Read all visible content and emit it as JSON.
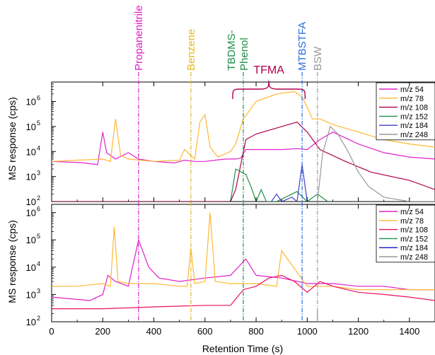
{
  "chart_data": {
    "type": "line",
    "xlabel": "Retention Time (s)",
    "ylabel": "MS response (cps)",
    "xlim": [
      0,
      1500
    ],
    "x_ticks": [
      0,
      200,
      400,
      600,
      800,
      1000,
      1200,
      1400
    ],
    "y_scale": "log",
    "top_panel": {
      "ylim": [
        100,
        6000000
      ],
      "y_ticks": [
        {
          "value": 100,
          "base": "10",
          "exp": "2"
        },
        {
          "value": 1000,
          "base": "10",
          "exp": "3"
        },
        {
          "value": 10000,
          "base": "10",
          "exp": "4"
        },
        {
          "value": 100000,
          "base": "10",
          "exp": "5"
        },
        {
          "value": 1000000,
          "base": "10",
          "exp": "6"
        }
      ],
      "legend": "top-right",
      "series": [
        {
          "name": "m/z 54",
          "color": "#e020c8",
          "x": [
            0,
            120,
            180,
            200,
            215,
            250,
            300,
            340,
            400,
            480,
            520,
            560,
            600,
            640,
            680,
            700,
            720,
            740,
            760,
            800,
            900,
            960,
            1000,
            1050,
            1100,
            1200,
            1300,
            1400,
            1500
          ],
          "y": [
            4000,
            3600,
            3000,
            60000,
            9000,
            5000,
            9000,
            5000,
            4000,
            3500,
            4500,
            4000,
            4000,
            4500,
            5000,
            5000,
            5000,
            5500,
            12000,
            12000,
            12000,
            13000,
            12000,
            30000,
            60000,
            20000,
            9000,
            6000,
            5000
          ]
        },
        {
          "name": "m/z 78",
          "color": "#ffb833",
          "x": [
            0,
            100,
            200,
            230,
            250,
            270,
            300,
            400,
            500,
            520,
            560,
            580,
            600,
            620,
            650,
            700,
            720,
            750,
            800,
            880,
            950,
            980,
            1000,
            1020,
            1050,
            1100,
            1200,
            1300,
            1400,
            1500
          ],
          "y": [
            4000,
            4500,
            5000,
            4000,
            200000,
            7000,
            5000,
            4000,
            4500,
            12000,
            5000,
            150000,
            300000,
            15000,
            6000,
            10000,
            20000,
            200000,
            1000000,
            2000000,
            2500000,
            1500000,
            600000,
            200000,
            200000,
            120000,
            60000,
            30000,
            20000,
            15000
          ]
        },
        {
          "name": "m/z 108",
          "color": "#b0004e",
          "x": [
            0,
            700,
            720,
            760,
            800,
            900,
            960,
            1000,
            1050,
            1150,
            1250,
            1400,
            1500
          ],
          "y": [
            100,
            100,
            300,
            30000,
            50000,
            100000,
            150000,
            60000,
            12000,
            4000,
            1500,
            700,
            300
          ]
        },
        {
          "name": "m/z 152",
          "color": "#1e8f48",
          "x": [
            700,
            720,
            760,
            780,
            800,
            820,
            840,
            880,
            960,
            1000,
            1040,
            1080
          ],
          "y": [
            100,
            2000,
            1200,
            400,
            100,
            300,
            100,
            100,
            250,
            100,
            200,
            100
          ]
        },
        {
          "name": "m/z 184",
          "color": "#4040c0",
          "x": [
            860,
            880,
            900,
            940,
            960,
            980,
            1000
          ],
          "y": [
            100,
            200,
            100,
            150,
            100,
            3000,
            100
          ]
        },
        {
          "name": "m/z 248",
          "color": "#999999",
          "x": [
            1040,
            1060,
            1090,
            1120,
            1160,
            1200,
            1240,
            1300,
            1400,
            1500
          ],
          "y": [
            100,
            8000,
            100000,
            50000,
            10000,
            1500,
            400,
            150,
            100,
            100
          ]
        }
      ]
    },
    "bottom_panel": {
      "ylim": [
        100,
        2000000
      ],
      "y_ticks": [
        {
          "value": 100,
          "base": "10",
          "exp": "2"
        },
        {
          "value": 1000,
          "base": "10",
          "exp": "3"
        },
        {
          "value": 10000,
          "base": "10",
          "exp": "4"
        },
        {
          "value": 100000,
          "base": "10",
          "exp": "5"
        },
        {
          "value": 1000000,
          "base": "10",
          "exp": "6"
        }
      ],
      "legend": "top-right",
      "series": [
        {
          "name": "m/z 54",
          "color": "#e020c8",
          "x": [
            0,
            150,
            200,
            220,
            250,
            300,
            340,
            380,
            420,
            500,
            600,
            700,
            760,
            800,
            900,
            1000,
            1100,
            1200,
            1300,
            1400,
            1500
          ],
          "y": [
            800,
            600,
            1000,
            5000,
            3000,
            2000,
            100000,
            10000,
            4000,
            3000,
            4000,
            5000,
            20000,
            5000,
            4000,
            2500,
            2500,
            2000,
            2000,
            1500,
            1500
          ]
        },
        {
          "name": "m/z 78",
          "color": "#ffb833",
          "x": [
            0,
            100,
            200,
            230,
            245,
            260,
            300,
            400,
            500,
            530,
            545,
            560,
            600,
            620,
            640,
            700,
            800,
            880,
            900,
            1000,
            1100,
            1200,
            1300,
            1400,
            1500
          ],
          "y": [
            2000,
            2000,
            2500,
            2000,
            300000,
            3000,
            2500,
            2500,
            2000,
            2000,
            50000,
            2500,
            3000,
            1000000,
            3000,
            2500,
            2500,
            2000,
            40000,
            2000,
            2000,
            1500,
            1500,
            1500,
            1500
          ]
        },
        {
          "name": "m/z 108",
          "color": "#ea1060",
          "x": [
            0,
            200,
            400,
            600,
            700,
            750,
            800,
            850,
            900,
            950,
            1000,
            1050,
            1100,
            1200,
            1300,
            1400,
            1500
          ],
          "y": [
            300,
            300,
            350,
            400,
            400,
            1500,
            2000,
            4000,
            5000,
            3000,
            1200,
            3000,
            2000,
            1200,
            1000,
            800,
            600
          ]
        },
        {
          "name": "m/z 152",
          "color": "#1e8f48",
          "x": [],
          "y": []
        },
        {
          "name": "m/z 184",
          "color": "#1010c0",
          "x": [],
          "y": []
        },
        {
          "name": "m/z 248",
          "color": "#999999",
          "x": [
            1040,
            1040
          ],
          "y": [
            100,
            250
          ]
        }
      ]
    },
    "annotations": [
      {
        "label": "Propanenitrile",
        "x": 340,
        "color": "#e020c8",
        "lines": [
          "Propanenitrile"
        ]
      },
      {
        "label": "Benzene",
        "x": 545,
        "color": "#e6b820",
        "lines": [
          "Benzene"
        ]
      },
      {
        "label": "TBDMS-Phenol",
        "x": 750,
        "color": "#1e8f48",
        "lines": [
          "TBDMS-",
          "Phenol"
        ]
      },
      {
        "label": "MTBSTFA",
        "x": 980,
        "color": "#2a6fdc",
        "lines": [
          "MTBSTFA"
        ]
      },
      {
        "label": "BSW",
        "x": 1040,
        "color": "#999999",
        "lines": [
          "BSW"
        ]
      }
    ],
    "bracket": {
      "label": "TFMA",
      "x_start": 700,
      "x_end": 1000,
      "color": "#b0004e"
    }
  }
}
